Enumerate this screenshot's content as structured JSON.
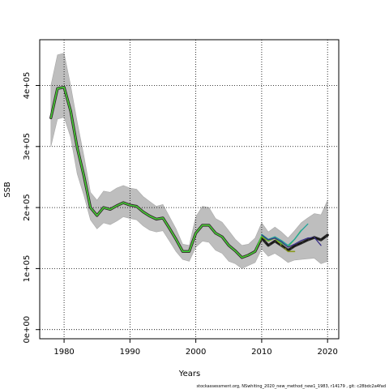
{
  "chart_data": {
    "type": "line",
    "xlabel": "Years",
    "ylabel": "SSB",
    "xlim": [
      1976.3,
      2021.7
    ],
    "ylim": [
      -15000,
      475000
    ],
    "grid": true,
    "x_ticks": [
      {
        "value": 1980,
        "label": "1980"
      },
      {
        "value": 1990,
        "label": "1990"
      },
      {
        "value": 2000,
        "label": "2000"
      },
      {
        "value": 2010,
        "label": "2010"
      },
      {
        "value": 2020,
        "label": "2020"
      }
    ],
    "y_ticks": [
      {
        "value": 0,
        "label": "0e+00"
      },
      {
        "value": 100000,
        "label": "1e+05"
      },
      {
        "value": 200000,
        "label": "2e+05"
      },
      {
        "value": 300000,
        "label": "3e+05"
      },
      {
        "value": 400000,
        "label": "4e+05"
      }
    ],
    "credit": "stockassessment.org, NSwhiting_2020_new_method_new1_1983, r14179 , git: c28bdc2a4fad",
    "band": {
      "color": "#bebebe",
      "x": [
        1978,
        1979,
        1980,
        1981,
        1982,
        1983,
        1984,
        1985,
        1986,
        1987,
        1988,
        1989,
        1990,
        1991,
        1992,
        1993,
        1994,
        1995,
        1996,
        1997,
        1998,
        1999,
        2000,
        2001,
        2002,
        2003,
        2004,
        2005,
        2006,
        2007,
        2008,
        2009,
        2010,
        2011,
        2012,
        2013,
        2014,
        2015,
        2016,
        2017,
        2018,
        2019,
        2020
      ],
      "upper": [
        400000,
        450000,
        453000,
        400000,
        340000,
        285000,
        225000,
        212000,
        227000,
        225000,
        232000,
        236000,
        232000,
        230000,
        218000,
        210000,
        202000,
        205000,
        185000,
        165000,
        140000,
        138000,
        185000,
        202000,
        200000,
        182000,
        176000,
        162000,
        148000,
        138000,
        140000,
        150000,
        175000,
        160000,
        168000,
        160000,
        150000,
        162000,
        175000,
        183000,
        190000,
        188000,
        212000
      ],
      "lower": [
        300000,
        345000,
        348000,
        315000,
        255000,
        220000,
        180000,
        165000,
        175000,
        172000,
        178000,
        185000,
        182000,
        180000,
        170000,
        163000,
        160000,
        162000,
        145000,
        128000,
        115000,
        112000,
        135000,
        145000,
        143000,
        130000,
        125000,
        112000,
        108000,
        100000,
        105000,
        110000,
        132000,
        120000,
        125000,
        118000,
        110000,
        114000,
        115000,
        116000,
        117000,
        108000,
        112000
      ]
    },
    "series": [
      {
        "color": "#2b2b2b",
        "width": 3.4,
        "x": [
          1978,
          1979,
          1980,
          1981,
          1982,
          1983,
          1984,
          1985,
          1986,
          1987,
          1988,
          1989,
          1990,
          1991,
          1992,
          1993,
          1994,
          1995,
          1996,
          1997,
          1998,
          1999,
          2000,
          2001,
          2002,
          2003,
          2004,
          2005,
          2006,
          2007,
          2008,
          2009,
          2010,
          2011,
          2012,
          2013,
          2014,
          2015,
          2016,
          2017,
          2018,
          2019,
          2020
        ],
        "y": [
          347000,
          395000,
          397000,
          358000,
          298000,
          252000,
          200000,
          187000,
          200000,
          197000,
          203000,
          208000,
          204000,
          202000,
          193000,
          186000,
          181000,
          183000,
          166000,
          148000,
          128000,
          128000,
          158000,
          171000,
          171000,
          158000,
          152000,
          138000,
          129000,
          118000,
          122000,
          128000,
          150000,
          138000,
          145000,
          138000,
          130000,
          137000,
          142000,
          147000,
          151000,
          147000,
          155000
        ]
      },
      {
        "color": "#8a9a1c",
        "width": 1.6,
        "x": [
          1978,
          1979,
          1980,
          1981,
          1982,
          1983,
          1984,
          1985,
          1986,
          1987,
          1988,
          1989,
          1990,
          1991,
          1992,
          1993,
          1994,
          1995,
          1996,
          1997,
          1998,
          1999,
          2000,
          2001,
          2002,
          2003,
          2004,
          2005,
          2006,
          2007,
          2008,
          2009,
          2010,
          2011,
          2012,
          2013,
          2014,
          2015
        ],
        "y": [
          347000,
          395000,
          397000,
          358000,
          298000,
          252000,
          200000,
          187000,
          200000,
          197000,
          203000,
          208000,
          204000,
          202000,
          193000,
          186000,
          181000,
          183000,
          166000,
          148000,
          128000,
          128000,
          158000,
          171000,
          171000,
          158000,
          152000,
          138000,
          129000,
          118000,
          122000,
          128000,
          152000,
          145000,
          150000,
          138000,
          128000,
          128000
        ]
      },
      {
        "color": "#3bd23b",
        "width": 1.3,
        "x": [
          1978,
          1979,
          1980,
          1981,
          1982,
          1983,
          1984,
          1985,
          1986,
          1987,
          1988,
          1989,
          1990,
          1991,
          1992,
          1993,
          1994,
          1995,
          1996,
          1997,
          1998,
          1999,
          2000,
          2001,
          2002,
          2003,
          2004,
          2005,
          2006,
          2007,
          2008,
          2009,
          2010,
          2011,
          2012,
          2013,
          2014,
          2015,
          2016
        ],
        "y": [
          347000,
          395000,
          397000,
          358000,
          298000,
          252000,
          200000,
          187000,
          200000,
          197000,
          203000,
          208000,
          204000,
          202000,
          193000,
          186000,
          181000,
          183000,
          166000,
          148000,
          128000,
          128000,
          158000,
          171000,
          171000,
          158000,
          152000,
          138000,
          129000,
          118000,
          122000,
          128000,
          154000,
          146000,
          150000,
          142000,
          136000,
          148000,
          163000
        ]
      },
      {
        "color": "#20a59a",
        "width": 1.3,
        "x": [
          2010,
          2011,
          2012,
          2013,
          2014,
          2015,
          2016,
          2017
        ],
        "y": [
          156000,
          148000,
          152000,
          146000,
          138000,
          148000,
          162000,
          173000
        ]
      },
      {
        "color": "#3a2f8a",
        "width": 1.3,
        "x": [
          2010,
          2011,
          2012,
          2013,
          2014,
          2015,
          2016,
          2017,
          2018,
          2019
        ],
        "y": [
          155000,
          147000,
          150000,
          144000,
          135000,
          140000,
          146000,
          150000,
          151000,
          138000
        ]
      },
      {
        "color": "#111111",
        "width": 1.2,
        "dash": "5,3",
        "x": [
          2010,
          2011,
          2012,
          2013,
          2014,
          2015,
          2016,
          2017,
          2018,
          2019,
          2020
        ],
        "y": [
          150000,
          138000,
          145000,
          138000,
          130000,
          137000,
          142000,
          147000,
          151000,
          147000,
          155000
        ]
      }
    ]
  }
}
